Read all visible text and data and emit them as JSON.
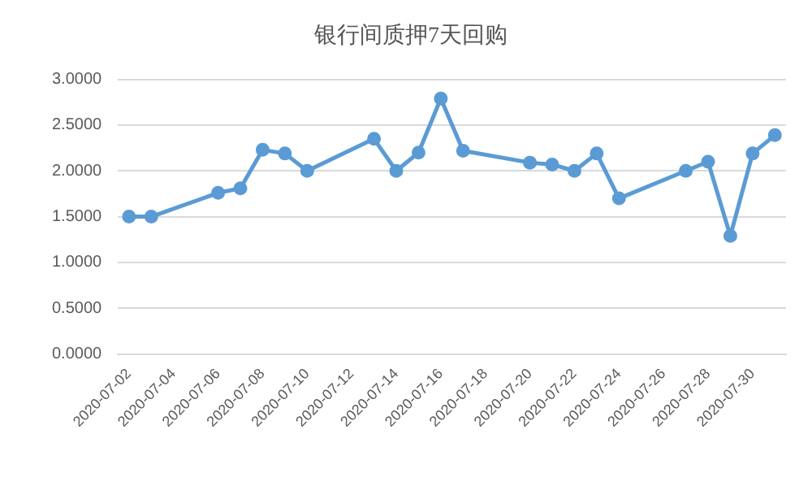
{
  "chart_data": {
    "type": "line",
    "title": "银行间质押7天回购",
    "categories": [
      "2020-07-02",
      null,
      "2020-07-04",
      null,
      "2020-07-06",
      null,
      "2020-07-08",
      null,
      "2020-07-10",
      null,
      "2020-07-12",
      null,
      "2020-07-14",
      null,
      "2020-07-16",
      null,
      "2020-07-18",
      null,
      "2020-07-20",
      null,
      "2020-07-22",
      null,
      "2020-07-24",
      null,
      "2020-07-26",
      null,
      "2020-07-28",
      null,
      "2020-07-30",
      null
    ],
    "series": [
      {
        "color": "#5b9bd5",
        "values": [
          1.5,
          1.5,
          null,
          null,
          1.76,
          1.81,
          2.23,
          2.19,
          2.0,
          null,
          null,
          2.35,
          2.0,
          2.2,
          2.79,
          2.22,
          null,
          null,
          2.09,
          2.07,
          2.0,
          2.19,
          1.7,
          null,
          null,
          2.0,
          2.1,
          1.29,
          2.19,
          2.39
        ]
      }
    ],
    "ylim": [
      0,
      3
    ],
    "yticks": [
      {
        "value": 0,
        "label": "0.0000"
      },
      {
        "value": 0.5,
        "label": "0.5000"
      },
      {
        "value": 1,
        "label": "1.0000"
      },
      {
        "value": 1.5,
        "label": "1.5000"
      },
      {
        "value": 2,
        "label": "2.0000"
      },
      {
        "value": 2.5,
        "label": "2.5000"
      },
      {
        "value": 3,
        "label": "3.0000"
      }
    ],
    "grid": "y",
    "legend": false,
    "marker": "circle",
    "line_style": "solid"
  }
}
